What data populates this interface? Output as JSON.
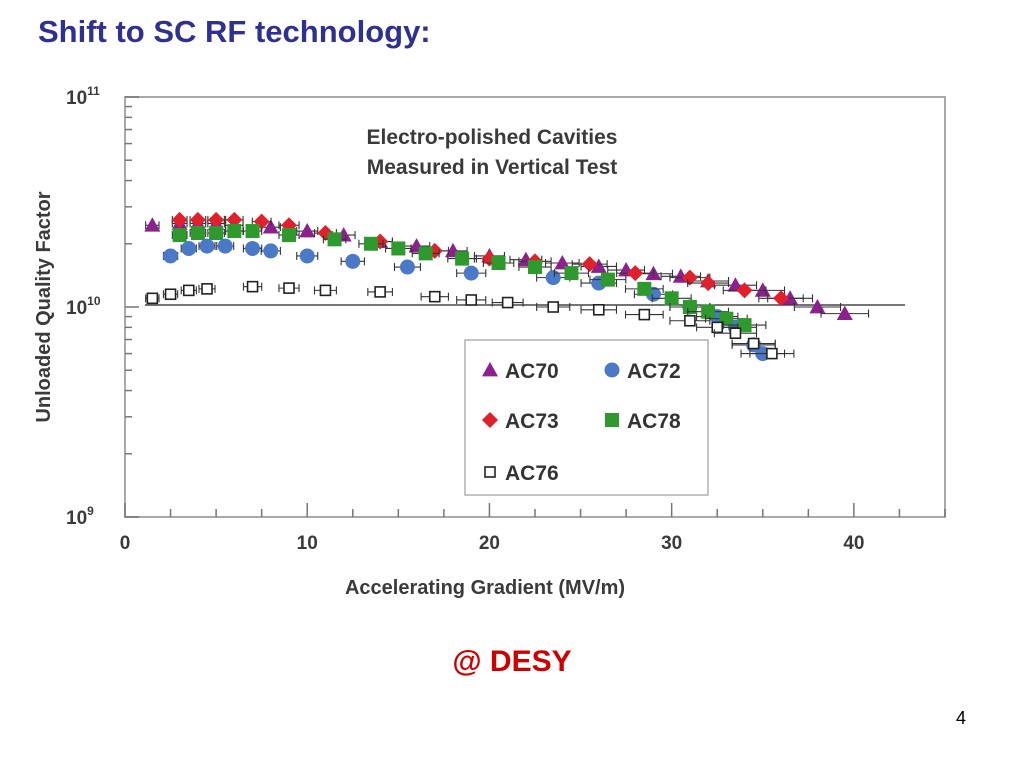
{
  "slide": {
    "title": "Shift to SC RF technology:",
    "footnote": "@ DESY",
    "page_number": "4"
  },
  "chart_data": {
    "type": "scatter",
    "title": "Electro-polished Cavities",
    "subtitle": "Measured in Vertical Test",
    "xlabel": "Accelerating Gradient (MV/m)",
    "ylabel": "Unloaded Quality Factor",
    "xlim": [
      0,
      45
    ],
    "ylim": [
      1000000000.0,
      100000000000.0
    ],
    "yscale": "log",
    "x_ticks": [
      0,
      10,
      20,
      30,
      40
    ],
    "y_tick_labels": [
      {
        "base": "10",
        "exp": "9",
        "value": 1000000000.0
      },
      {
        "base": "10",
        "exp": "10",
        "value": 10000000000.0
      },
      {
        "base": "10",
        "exp": "11",
        "value": 100000000000.0
      }
    ],
    "legend_position": "bottom-right",
    "colors": {
      "AC70": "#8e1f8f",
      "AC72": "#4a79c8",
      "AC73": "#e0212b",
      "AC78": "#2e9a2e",
      "AC76": "#222222"
    },
    "series": [
      {
        "name": "AC70",
        "marker": "triangle",
        "x": [
          1.5,
          3,
          4,
          5,
          6,
          8,
          10,
          12,
          14,
          16,
          18,
          20,
          22,
          24,
          26,
          27.5,
          29,
          30.5,
          32,
          33.5,
          35,
          36.5,
          38,
          39.5
        ],
        "y": [
          24500000000.0,
          25000000000.0,
          25000000000.0,
          25000000000.0,
          24500000000.0,
          24000000000.0,
          23000000000.0,
          22000000000.0,
          20500000000.0,
          19500000000.0,
          18500000000.0,
          17500000000.0,
          16800000000.0,
          16200000000.0,
          15600000000.0,
          15000000000.0,
          14400000000.0,
          14000000000.0,
          13300000000.0,
          12700000000.0,
          12000000000.0,
          11000000000.0,
          10000000000.0,
          9300000000.0
        ]
      },
      {
        "name": "AC72",
        "marker": "circle",
        "x": [
          2.5,
          3.5,
          4.5,
          5.5,
          7,
          8,
          10,
          12.5,
          15.5,
          19,
          23.5,
          26,
          29,
          31,
          32.5,
          33.5,
          34.5,
          35
        ],
        "y": [
          17500000000.0,
          19000000000.0,
          19500000000.0,
          19500000000.0,
          19000000000.0,
          18500000000.0,
          17500000000.0,
          16500000000.0,
          15500000000.0,
          14500000000.0,
          13800000000.0,
          13000000000.0,
          11500000000.0,
          10000000000.0,
          9000000000.0,
          8000000000.0,
          6600000000.0,
          6000000000.0
        ]
      },
      {
        "name": "AC73",
        "marker": "diamond",
        "x": [
          3,
          4,
          5,
          6,
          7.5,
          9,
          11,
          14,
          17,
          20,
          22.5,
          25.5,
          28,
          31,
          32,
          34,
          36
        ],
        "y": [
          26000000000.0,
          26000000000.0,
          26000000000.0,
          26000000000.0,
          25500000000.0,
          24500000000.0,
          22500000000.0,
          20500000000.0,
          18500000000.0,
          17000000000.0,
          16500000000.0,
          16000000000.0,
          14500000000.0,
          13800000000.0,
          13000000000.0,
          12000000000.0,
          11000000000.0
        ]
      },
      {
        "name": "AC78",
        "marker": "square",
        "x": [
          3,
          4,
          5,
          6,
          7,
          9,
          11.5,
          13.5,
          15,
          16.5,
          18.5,
          20.5,
          22.5,
          24.5,
          26.5,
          28.5,
          30,
          31,
          32,
          33,
          34
        ],
        "y": [
          22000000000.0,
          22500000000.0,
          22500000000.0,
          23000000000.0,
          23000000000.0,
          22000000000.0,
          21000000000.0,
          20000000000.0,
          19000000000.0,
          18000000000.0,
          17000000000.0,
          16200000000.0,
          15500000000.0,
          14500000000.0,
          13500000000.0,
          12200000000.0,
          11000000000.0,
          10000000000.0,
          9500000000.0,
          8800000000.0,
          8200000000.0
        ]
      },
      {
        "name": "AC76",
        "marker": "open-square",
        "x": [
          1.5,
          2.5,
          3.5,
          4.5,
          7,
          9,
          11,
          14,
          17,
          19,
          21,
          23.5,
          26,
          28.5,
          31,
          32.5,
          33.5,
          34.5,
          35.5
        ],
        "y": [
          11000000000.0,
          11500000000.0,
          12000000000.0,
          12200000000.0,
          12500000000.0,
          12300000000.0,
          12000000000.0,
          11800000000.0,
          11200000000.0,
          10800000000.0,
          10500000000.0,
          10000000000.0,
          9700000000.0,
          9200000000.0,
          8600000000.0,
          8000000000.0,
          7500000000.0,
          6700000000.0,
          6000000000.0
        ]
      }
    ]
  }
}
